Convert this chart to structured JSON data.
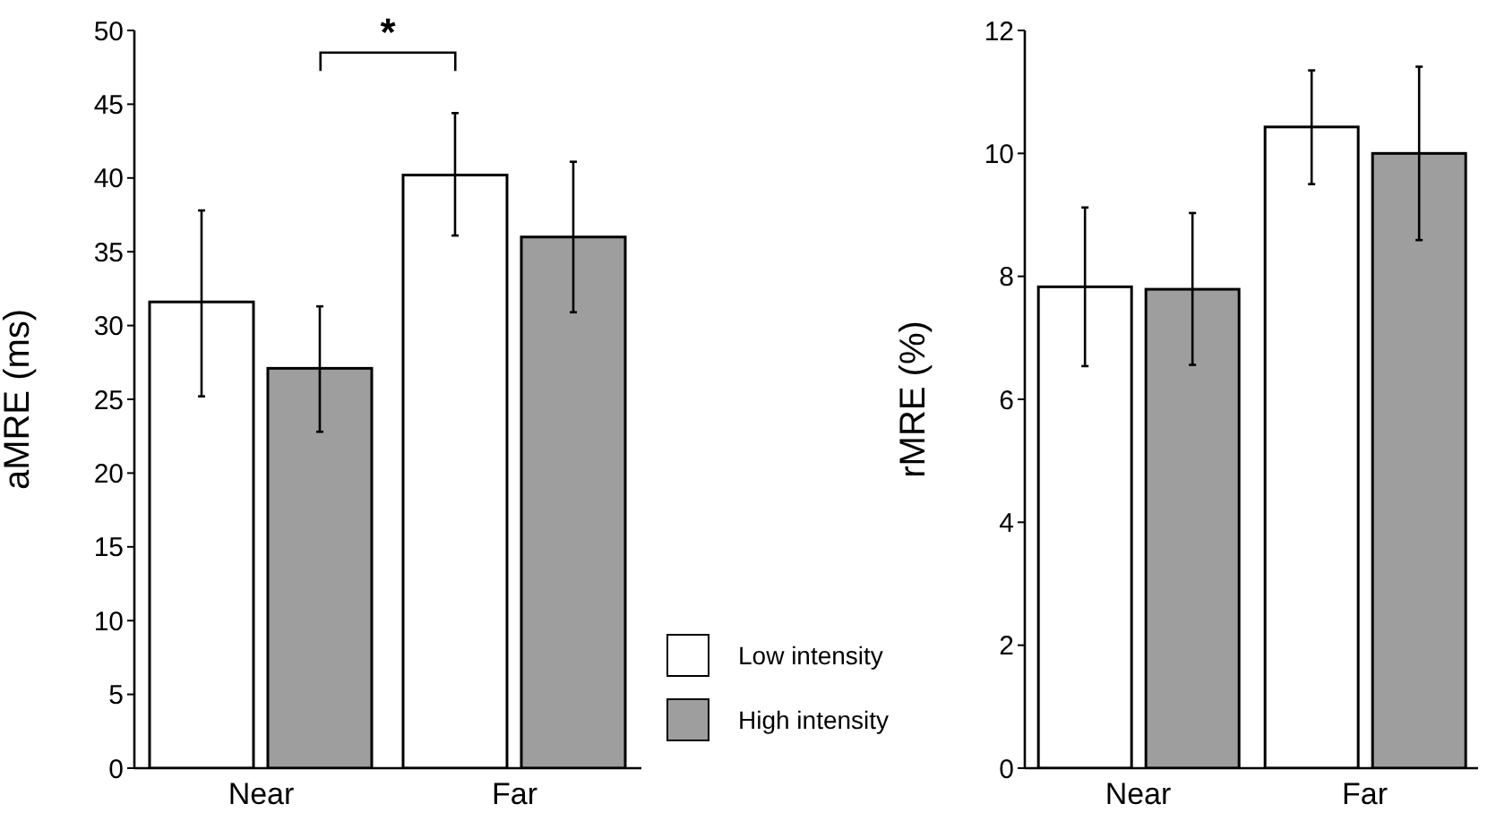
{
  "chart_data": [
    {
      "type": "bar",
      "ylabel": "aMRE (ms)",
      "categories": [
        "Near",
        "Far"
      ],
      "ylim": [
        0,
        50
      ],
      "yticks": [
        0,
        5,
        10,
        15,
        20,
        25,
        30,
        35,
        40,
        45,
        50
      ],
      "legend": "bottom right",
      "annotations": [
        "*"
      ],
      "series": [
        {
          "name": "Low intensity",
          "color": "#ffffff",
          "values": [
            31.6,
            40.2
          ],
          "errors": [
            [
              25.2,
              37.8
            ],
            [
              36.1,
              44.4
            ]
          ]
        },
        {
          "name": "High intensity",
          "color": "#9d9e9d",
          "values": [
            27.1,
            36.0
          ],
          "errors": [
            [
              22.8,
              31.3
            ],
            [
              30.9,
              41.1
            ]
          ]
        }
      ]
    },
    {
      "type": "bar",
      "ylabel": "rMRE (%)",
      "categories": [
        "Near",
        "Far"
      ],
      "ylim": [
        0,
        12
      ],
      "yticks": [
        0,
        2,
        4,
        6,
        8,
        10,
        12
      ],
      "legend": false,
      "series": [
        {
          "color": "#ffffff",
          "values": [
            7.83,
            10.43
          ],
          "errors": [
            [
              6.54,
              9.12
            ],
            [
              9.5,
              11.35
            ]
          ]
        },
        {
          "color": "#9d9e9d",
          "values": [
            7.79,
            10.0
          ],
          "errors": [
            [
              6.56,
              9.03
            ],
            [
              8.59,
              11.41
            ]
          ]
        }
      ]
    }
  ]
}
